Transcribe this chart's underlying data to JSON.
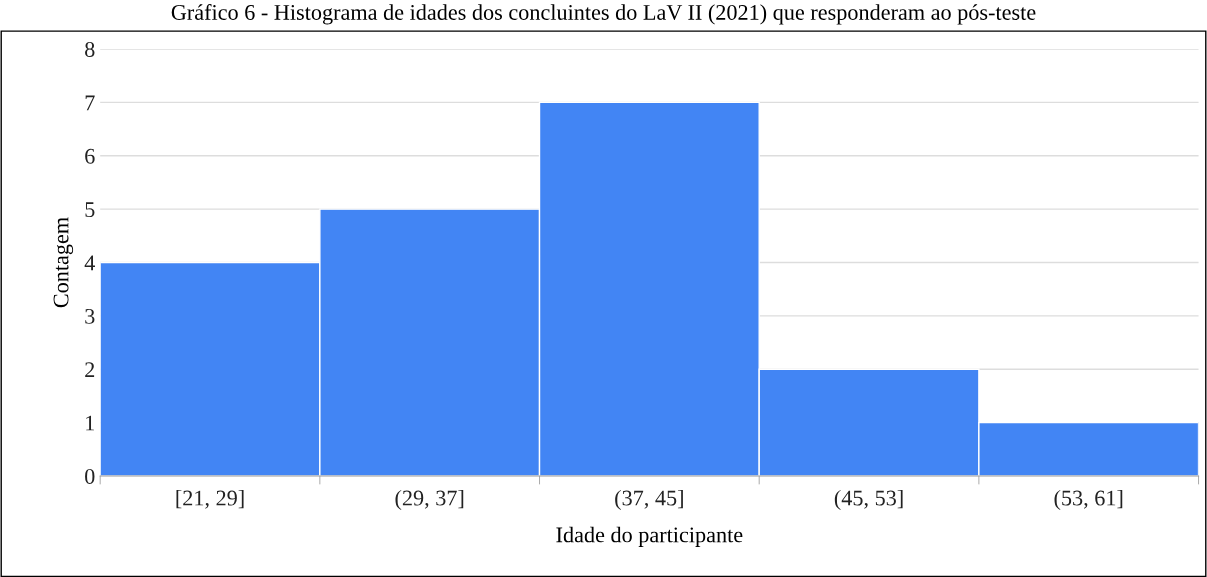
{
  "chart_data": {
    "type": "bar",
    "title": "Gráfico 6 - Histograma de idades dos concluintes do LaV II (2021) que responderam ao pós-teste",
    "xlabel": "Idade do participante",
    "ylabel": "Contagem",
    "categories": [
      "[21, 29]",
      "(29, 37]",
      "(37, 45]",
      "(45, 53]",
      "(53, 61]"
    ],
    "values": [
      4,
      5,
      7,
      2,
      1
    ],
    "color": "#4285f4",
    "ylim": [
      0,
      8
    ],
    "yticks": [
      0,
      1,
      2,
      3,
      4,
      5,
      6,
      7,
      8
    ],
    "grid": "y"
  }
}
